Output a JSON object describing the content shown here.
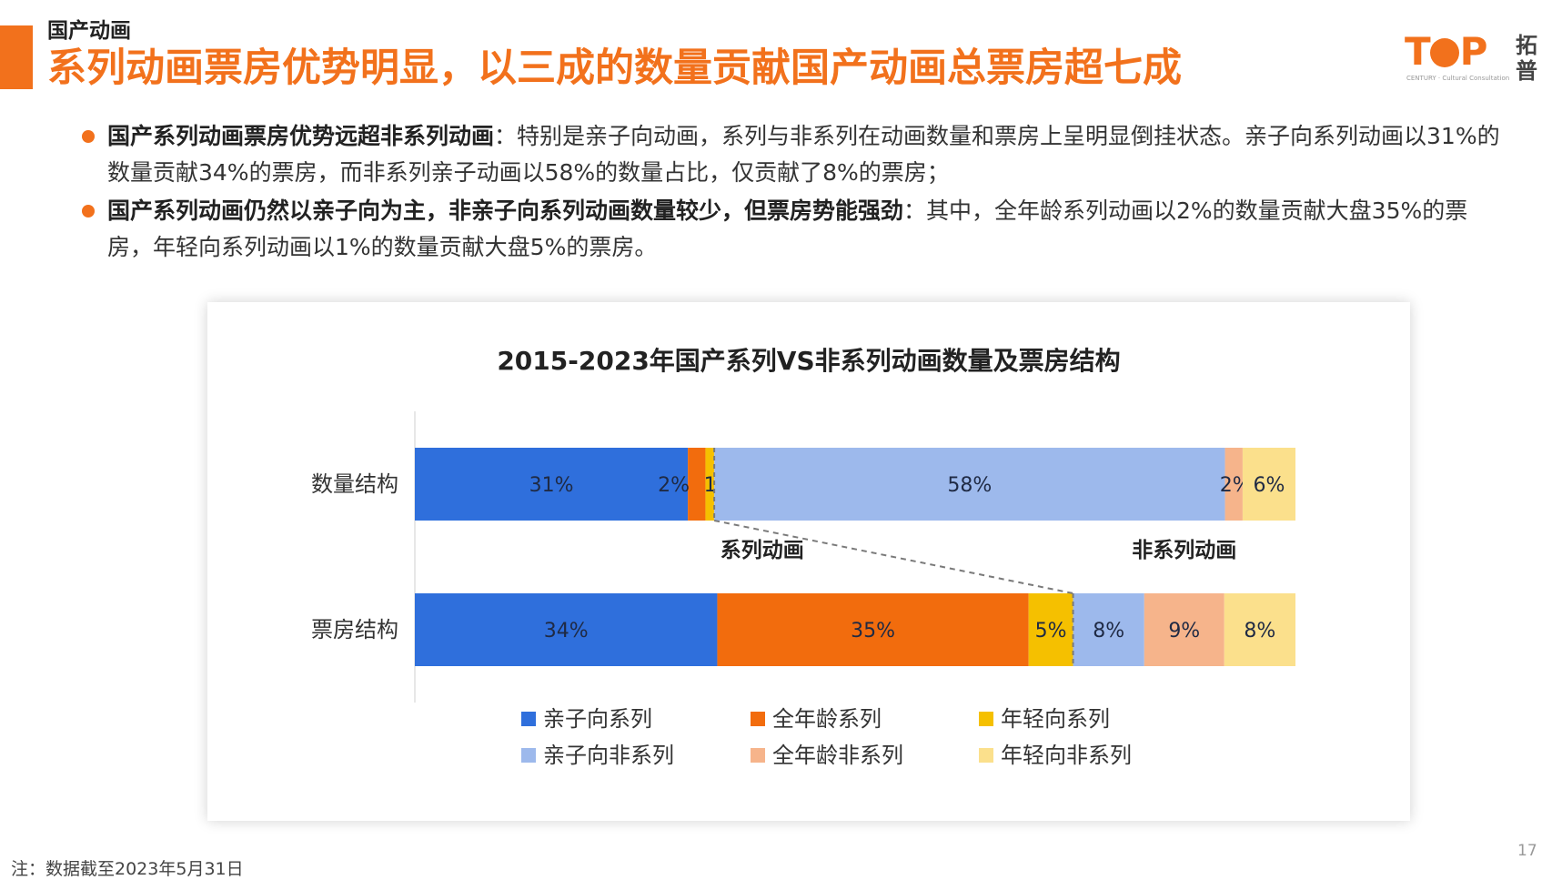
{
  "header": {
    "section_label": "国产动画",
    "title": "系列动画票房优势明显，以三成的数量贡献国产动画总票房超七成"
  },
  "logo": {
    "brand": "TOP",
    "sub": "CENTURY · Cultural Consultation",
    "cn_line1": "拓",
    "cn_line2": "普"
  },
  "bullets": [
    {
      "bold": "国产系列动画票房优势远超非系列动画",
      "text": "：特别是亲子向动画，系列与非系列在动画数量和票房上呈明显倒挂状态。亲子向系列动画以31%的数量贡献34%的票房，而非系列亲子动画以58%的数量占比，仅贡献了8%的票房；"
    },
    {
      "bold": "国产系列动画仍然以亲子向为主，非亲子向系列动画数量较少，但票房势能强劲",
      "text": "：其中，全年龄系列动画以2%的数量贡献大盘35%的票房，年轻向系列动画以1%的数量贡献大盘5%的票房。"
    }
  ],
  "chart_data": {
    "type": "bar",
    "orientation": "horizontal",
    "stacked": "100%",
    "title": "2015-2023年国产系列VS非系列动画数量及票房结构",
    "categories": [
      "数量结构",
      "票房结构"
    ],
    "series": [
      {
        "name": "亲子向系列",
        "color": "#2f6fdc",
        "values": [
          31,
          34
        ],
        "labels": [
          "31%",
          "34%"
        ]
      },
      {
        "name": "全年龄系列",
        "color": "#f26c0d",
        "values": [
          2,
          35
        ],
        "labels": [
          "2%",
          "35%"
        ]
      },
      {
        "name": "年轻向系列",
        "color": "#f5c000",
        "values": [
          1,
          5
        ],
        "labels": [
          "1%",
          "5%"
        ]
      },
      {
        "name": "亲子向非系列",
        "color": "#9db9ec",
        "values": [
          58,
          8
        ],
        "labels": [
          "58%",
          "8%"
        ]
      },
      {
        "name": "全年龄非系列",
        "color": "#f6b48b",
        "values": [
          2,
          9
        ],
        "labels": [
          "2%",
          "9%"
        ]
      },
      {
        "name": "年轻向非系列",
        "color": "#fbe08c",
        "values": [
          6,
          8
        ],
        "labels": [
          "6%",
          "8%"
        ]
      }
    ],
    "annotations": [
      "系列动画",
      "非系列动画"
    ],
    "legend_position": "bottom",
    "grid": false
  },
  "footer": {
    "note": "注：数据截至2023年5月31日",
    "page": "17"
  }
}
